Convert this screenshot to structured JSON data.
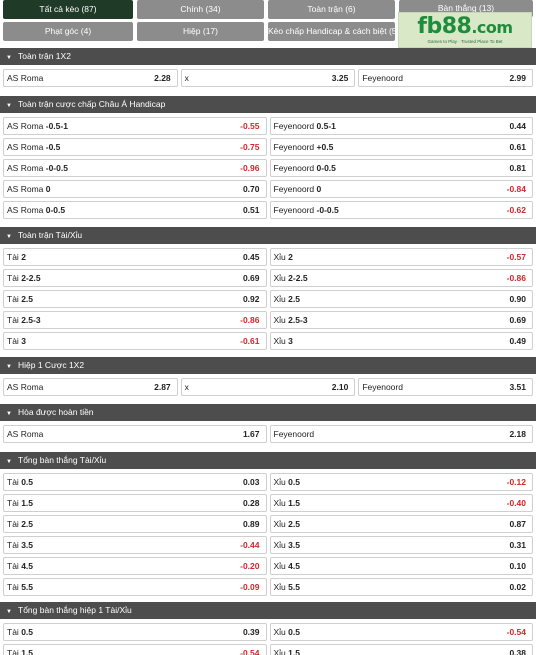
{
  "tabs": [
    {
      "label": "Tất cả kèo (87)",
      "active": true
    },
    {
      "label": "Chính (34)",
      "active": false
    },
    {
      "label": "Toàn trận (6)",
      "active": false
    },
    {
      "label": "Bàn thắng (13)",
      "active": false
    },
    {
      "label": "Phạt góc (4)",
      "active": false
    },
    {
      "label": "Hiệp (17)",
      "active": false
    },
    {
      "label": "Kèo chấp Handicap & cách biệt (5)",
      "active": false
    }
  ],
  "logo": {
    "text_main": "fb88",
    "text_dom": ".com",
    "tagline": "Games to Play · Trusted Place To Bet"
  },
  "sections": [
    {
      "title": "Toàn trận 1X2",
      "cols": 3,
      "rows": [
        [
          {
            "name": "AS Roma",
            "hc": "",
            "odd": "2.28"
          },
          {
            "name": "x",
            "hc": "",
            "odd": "3.25"
          },
          {
            "name": "Feyenoord",
            "hc": "",
            "odd": "2.99"
          }
        ]
      ]
    },
    {
      "title": "Toàn trận cược chấp Châu Á Handicap",
      "cols": 2,
      "rows": [
        [
          {
            "name": "AS Roma",
            "hc": "-0.5-1",
            "odd": "-0.55"
          },
          {
            "name": "Feyenoord",
            "hc": "0.5-1",
            "odd": "0.44"
          }
        ],
        [
          {
            "name": "AS Roma",
            "hc": "-0.5",
            "odd": "-0.75"
          },
          {
            "name": "Feyenoord",
            "hc": "+0.5",
            "odd": "0.61"
          }
        ],
        [
          {
            "name": "AS Roma",
            "hc": "-0-0.5",
            "odd": "-0.96"
          },
          {
            "name": "Feyenoord",
            "hc": "0-0.5",
            "odd": "0.81"
          }
        ],
        [
          {
            "name": "AS Roma",
            "hc": "0",
            "odd": "0.70"
          },
          {
            "name": "Feyenoord",
            "hc": "0",
            "odd": "-0.84"
          }
        ],
        [
          {
            "name": "AS Roma",
            "hc": "0-0.5",
            "odd": "0.51"
          },
          {
            "name": "Feyenoord",
            "hc": "-0-0.5",
            "odd": "-0.62"
          }
        ]
      ]
    },
    {
      "title": "Toàn trận Tài/Xỉu",
      "cols": 2,
      "rows": [
        [
          {
            "name": "Tài",
            "hc": "2",
            "odd": "0.45"
          },
          {
            "name": "Xỉu",
            "hc": "2",
            "odd": "-0.57"
          }
        ],
        [
          {
            "name": "Tài",
            "hc": "2-2.5",
            "odd": "0.69"
          },
          {
            "name": "Xỉu",
            "hc": "2-2.5",
            "odd": "-0.86"
          }
        ],
        [
          {
            "name": "Tài",
            "hc": "2.5",
            "odd": "0.92"
          },
          {
            "name": "Xỉu",
            "hc": "2.5",
            "odd": "0.90"
          }
        ],
        [
          {
            "name": "Tài",
            "hc": "2.5-3",
            "odd": "-0.86"
          },
          {
            "name": "Xỉu",
            "hc": "2.5-3",
            "odd": "0.69"
          }
        ],
        [
          {
            "name": "Tài",
            "hc": "3",
            "odd": "-0.61"
          },
          {
            "name": "Xỉu",
            "hc": "3",
            "odd": "0.49"
          }
        ]
      ]
    },
    {
      "title": "Hiệp 1 Cược 1X2",
      "cols": 3,
      "rows": [
        [
          {
            "name": "AS Roma",
            "hc": "",
            "odd": "2.87"
          },
          {
            "name": "x",
            "hc": "",
            "odd": "2.10"
          },
          {
            "name": "Feyenoord",
            "hc": "",
            "odd": "3.51"
          }
        ]
      ]
    },
    {
      "title": "Hòa được hoàn tiền",
      "cols": 2,
      "rows": [
        [
          {
            "name": "AS Roma",
            "hc": "",
            "odd": "1.67"
          },
          {
            "name": "Feyenoord",
            "hc": "",
            "odd": "2.18"
          }
        ]
      ]
    },
    {
      "title": "Tổng bàn thắng Tài/Xỉu",
      "cols": 2,
      "rows": [
        [
          {
            "name": "Tài",
            "hc": "0.5",
            "odd": "0.03"
          },
          {
            "name": "Xỉu",
            "hc": "0.5",
            "odd": "-0.12"
          }
        ],
        [
          {
            "name": "Tài",
            "hc": "1.5",
            "odd": "0.28"
          },
          {
            "name": "Xỉu",
            "hc": "1.5",
            "odd": "-0.40"
          }
        ],
        [
          {
            "name": "Tài",
            "hc": "2.5",
            "odd": "0.89"
          },
          {
            "name": "Xỉu",
            "hc": "2.5",
            "odd": "0.87"
          }
        ],
        [
          {
            "name": "Tài",
            "hc": "3.5",
            "odd": "-0.44"
          },
          {
            "name": "Xỉu",
            "hc": "3.5",
            "odd": "0.31"
          }
        ],
        [
          {
            "name": "Tài",
            "hc": "4.5",
            "odd": "-0.20"
          },
          {
            "name": "Xỉu",
            "hc": "4.5",
            "odd": "0.10"
          }
        ],
        [
          {
            "name": "Tài",
            "hc": "5.5",
            "odd": "-0.09"
          },
          {
            "name": "Xỉu",
            "hc": "5.5",
            "odd": "0.02"
          }
        ]
      ]
    },
    {
      "title": "Tổng bàn thắng hiệp 1 Tài/Xỉu",
      "cols": 2,
      "rows": [
        [
          {
            "name": "Tài",
            "hc": "0.5",
            "odd": "0.39"
          },
          {
            "name": "Xỉu",
            "hc": "0.5",
            "odd": "-0.54"
          }
        ],
        [
          {
            "name": "Tài",
            "hc": "1.5",
            "odd": "-0.54"
          },
          {
            "name": "Xỉu",
            "hc": "1.5",
            "odd": "0.38"
          }
        ]
      ]
    }
  ],
  "colors": {
    "header_bg": "#4d4d4d",
    "tab_active": "#1f3a27",
    "tab_inactive": "#8c8c8c",
    "negative": "#d0282e"
  }
}
